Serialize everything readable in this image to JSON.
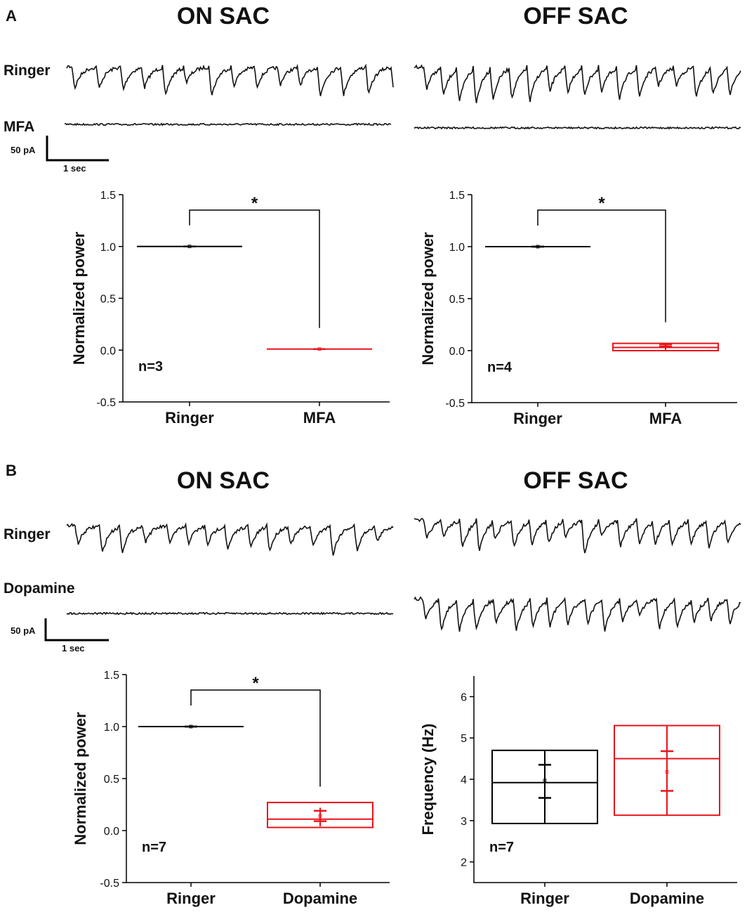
{
  "panels": [
    {
      "label": "A",
      "titles": [
        "ON SAC",
        "OFF SAC"
      ],
      "trace_labels": [
        "Ringer",
        "MFA"
      ],
      "scale_bar": {
        "y": "50 pA",
        "x": "1 sec"
      }
    },
    {
      "label": "B",
      "titles": [
        "ON SAC",
        "OFF SAC"
      ],
      "trace_labels": [
        "Ringer",
        "Dopamine"
      ],
      "scale_bar": {
        "y": "50 pA",
        "x": "1 sec"
      }
    }
  ],
  "chart_data": [
    {
      "type": "box",
      "y_label": "Normalized power",
      "categories": [
        "Ringer",
        "MFA"
      ],
      "annotation": "n=3",
      "significance": "*",
      "ylim": [
        -0.5,
        1.5
      ],
      "yticks": [
        -0.5,
        {
          "value": 0,
          "label": "0.0"
        },
        0.5,
        {
          "value": 1,
          "label": "1.0"
        },
        1.5
      ],
      "boxes": [
        {
          "color": "#000000",
          "box_low": 1,
          "box_high": 1,
          "median": 1,
          "mean": 1,
          "err_low": 1,
          "err_high": 1,
          "whisker_low": 1,
          "whisker_high": 1
        },
        {
          "color": "#e8141b",
          "box_low": 0.01,
          "box_high": 0.01,
          "median": 0.01,
          "mean": 0.01,
          "err_low": 0.01,
          "err_high": 0.01,
          "whisker_low": 0.01,
          "whisker_high": 0.01
        }
      ]
    },
    {
      "type": "box",
      "y_label": "Normalized power",
      "categories": [
        "Ringer",
        "MFA"
      ],
      "annotation": "n=4",
      "significance": "*",
      "ylim": [
        -0.5,
        1.5
      ],
      "yticks": [
        -0.5,
        {
          "value": 0,
          "label": "0.0"
        },
        0.5,
        {
          "value": 1,
          "label": "1.0"
        },
        1.5
      ],
      "boxes": [
        {
          "color": "#000000",
          "box_low": 1,
          "box_high": 1,
          "median": 1,
          "mean": 1,
          "err_low": 1,
          "err_high": 1,
          "whisker_low": 1,
          "whisker_high": 1
        },
        {
          "color": "#e8141b",
          "box_low": 0,
          "box_high": 0.07,
          "median": 0.03,
          "mean": 0.05,
          "err_low": 0.04,
          "err_high": 0.06,
          "whisker_low": 0,
          "whisker_high": 0.07
        }
      ]
    },
    {
      "type": "box",
      "y_label": "Normalized power",
      "categories": [
        "Ringer",
        "Dopamine"
      ],
      "annotation": "n=7",
      "significance": "*",
      "ylim": [
        -0.5,
        1.5
      ],
      "yticks": [
        -0.5,
        {
          "value": 0,
          "label": "0.0"
        },
        0.5,
        {
          "value": 1,
          "label": "1.0"
        },
        1.5
      ],
      "boxes": [
        {
          "color": "#000000",
          "box_low": 1,
          "box_high": 1,
          "median": 1,
          "mean": 1,
          "err_low": 1,
          "err_high": 1,
          "whisker_low": 1,
          "whisker_high": 1
        },
        {
          "color": "#e8141b",
          "box_low": 0.03,
          "box_high": 0.27,
          "median": 0.11,
          "mean": 0.14,
          "err_low": 0.09,
          "err_high": 0.19,
          "whisker_low": 0.04,
          "whisker_high": 0.22
        }
      ]
    },
    {
      "type": "box",
      "y_label": "Frequency (Hz)",
      "categories": [
        "Ringer",
        "Dopamine"
      ],
      "annotation": "n=7",
      "ylim": [
        1.5,
        6.5
      ],
      "yticks": [
        2,
        3,
        4,
        5,
        6
      ],
      "boxes": [
        {
          "color": "#000000",
          "box_low": 2.93,
          "box_high": 4.7,
          "median": 3.92,
          "mean": 3.97,
          "err_low": 3.55,
          "err_high": 4.35,
          "whisker_low": 2.93,
          "whisker_high": 4.7
        },
        {
          "color": "#e8141b",
          "box_low": 3.13,
          "box_high": 5.3,
          "median": 4.5,
          "mean": 4.18,
          "err_low": 3.72,
          "err_high": 4.68,
          "whisker_low": 3.13,
          "whisker_high": 5.3
        }
      ]
    }
  ]
}
